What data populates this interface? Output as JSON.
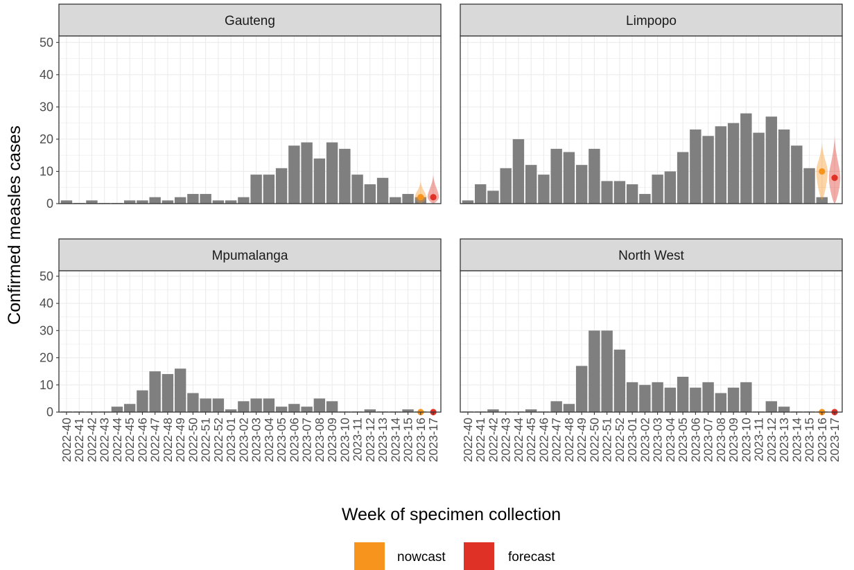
{
  "chart_data": {
    "type": "bar",
    "xlabel": "Week of specimen collection",
    "ylabel": "Confirmed measles cases",
    "ylim": [
      0,
      52
    ],
    "yticks": [
      0,
      10,
      20,
      30,
      40,
      50
    ],
    "grid": true,
    "legend_position": "bottom",
    "weeks": [
      "2022-40",
      "2022-41",
      "2022-42",
      "2022-43",
      "2022-44",
      "2022-45",
      "2022-46",
      "2022-47",
      "2022-48",
      "2022-49",
      "2022-50",
      "2022-51",
      "2022-52",
      "2023-01",
      "2023-02",
      "2023-03",
      "2023-04",
      "2023-05",
      "2023-06",
      "2023-07",
      "2023-08",
      "2023-09",
      "2023-10",
      "2023-11",
      "2023-12",
      "2023-13",
      "2023-14",
      "2023-15",
      "2023-16",
      "2023-17"
    ],
    "colors": {
      "bar": "#7f7f7f",
      "nowcast": "#f7941d",
      "forecast": "#e03127",
      "panel_border": "#333333",
      "strip_fill": "#d9d9d9",
      "grid": "#ebebeb"
    },
    "legend": [
      {
        "label": "nowcast",
        "color": "#f7941d"
      },
      {
        "label": "forecast",
        "color": "#e03127"
      }
    ],
    "panels": [
      {
        "name": "Gauteng",
        "values": [
          1,
          0,
          1,
          0,
          0,
          1,
          1,
          2,
          1,
          2,
          3,
          3,
          1,
          1,
          2,
          9,
          9,
          11,
          18,
          19,
          14,
          19,
          17,
          9,
          6,
          8,
          2,
          3,
          2,
          null
        ],
        "nowcast": {
          "week": "2023-16",
          "median": 2,
          "lower": 0,
          "upper": 7
        },
        "forecast": {
          "week": "2023-17",
          "median": 2,
          "lower": 0,
          "upper": 9
        }
      },
      {
        "name": "Limpopo",
        "values": [
          1,
          6,
          4,
          11,
          20,
          12,
          9,
          17,
          16,
          12,
          17,
          7,
          7,
          6,
          3,
          9,
          10,
          16,
          23,
          21,
          24,
          25,
          28,
          22,
          27,
          23,
          18,
          11,
          2,
          null
        ],
        "nowcast": {
          "week": "2023-16",
          "median": 10,
          "lower": 1,
          "upper": 19
        },
        "forecast": {
          "week": "2023-17",
          "median": 8,
          "lower": 0,
          "upper": 21
        }
      },
      {
        "name": "Mpumalanga",
        "values": [
          0,
          0,
          0,
          0,
          2,
          3,
          8,
          15,
          14,
          16,
          7,
          5,
          5,
          1,
          4,
          5,
          5,
          2,
          3,
          2,
          5,
          4,
          0,
          0,
          1,
          0,
          0,
          1,
          0,
          null
        ],
        "nowcast": {
          "week": "2023-16",
          "median": 0,
          "lower": 0,
          "upper": 0.5
        },
        "forecast": {
          "week": "2023-17",
          "median": 0,
          "lower": 0,
          "upper": 0.5
        }
      },
      {
        "name": "North West",
        "values": [
          0,
          0,
          1,
          0,
          0,
          1,
          0,
          4,
          3,
          17,
          30,
          30,
          23,
          11,
          10,
          11,
          9,
          13,
          9,
          11,
          7,
          9,
          11,
          0,
          4,
          2,
          0,
          0,
          0,
          null
        ],
        "nowcast": {
          "week": "2023-16",
          "median": 0,
          "lower": 0,
          "upper": 0.5
        },
        "forecast": {
          "week": "2023-17",
          "median": 0,
          "lower": 0,
          "upper": 0.5
        }
      }
    ]
  }
}
